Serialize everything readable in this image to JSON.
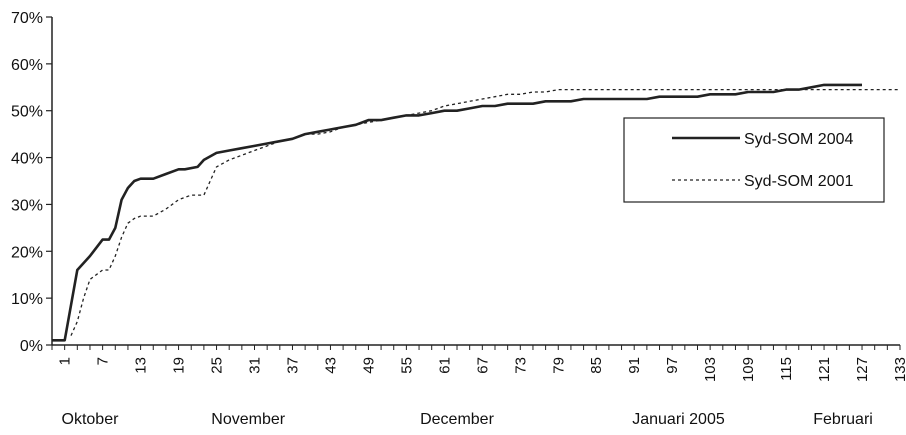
{
  "chart_data": {
    "type": "line",
    "title": "",
    "xlabel": "",
    "ylabel": "",
    "xlim": [
      -1,
      133
    ],
    "ylim": [
      0,
      70
    ],
    "y_ticks": [
      0,
      10,
      20,
      30,
      40,
      50,
      60,
      70
    ],
    "y_tick_labels": [
      "0%",
      "10%",
      "20%",
      "30%",
      "40%",
      "50%",
      "60%",
      "70%"
    ],
    "x_ticks": [
      1,
      7,
      13,
      19,
      25,
      31,
      37,
      43,
      49,
      55,
      61,
      67,
      73,
      79,
      85,
      91,
      97,
      103,
      109,
      115,
      121,
      127,
      133
    ],
    "x_tick_labels": [
      "1",
      "7",
      "13",
      "19",
      "25",
      "31",
      "37",
      "43",
      "49",
      "55",
      "61",
      "67",
      "73",
      "79",
      "85",
      "91",
      "97",
      "103",
      "109",
      "115",
      "121",
      "127",
      "133"
    ],
    "month_labels": [
      {
        "label": "Oktober",
        "x": 5
      },
      {
        "label": "November",
        "x": 30
      },
      {
        "label": "December",
        "x": 63
      },
      {
        "label": "Januari 2005",
        "x": 98
      },
      {
        "label": "Februari",
        "x": 124
      }
    ],
    "grid": false,
    "legend": "right, boxed",
    "series": [
      {
        "name": "Syd-SOM 2004",
        "style": "solid",
        "color": "#222222",
        "x": [
          -1,
          1,
          3,
          5,
          7,
          8,
          9,
          10,
          11,
          12,
          13,
          15,
          17,
          19,
          20,
          22,
          23,
          25,
          27,
          29,
          31,
          33,
          35,
          37,
          39,
          41,
          43,
          45,
          47,
          49,
          51,
          53,
          55,
          57,
          59,
          61,
          63,
          65,
          67,
          69,
          71,
          73,
          75,
          77,
          79,
          81,
          83,
          85,
          87,
          89,
          91,
          93,
          95,
          97,
          99,
          101,
          103,
          105,
          107,
          109,
          111,
          113,
          115,
          117,
          119,
          121,
          123,
          125,
          127
        ],
        "y": [
          1,
          1,
          16,
          19,
          22.5,
          22.5,
          25,
          31,
          33.5,
          35,
          35.5,
          35.5,
          36.5,
          37.5,
          37.5,
          38,
          39.5,
          41,
          41.5,
          42,
          42.5,
          43,
          43.5,
          44,
          45,
          45.5,
          46,
          46.5,
          47,
          48,
          48,
          48.5,
          49,
          49,
          49.5,
          50,
          50,
          50.5,
          51,
          51,
          51.5,
          51.5,
          51.5,
          52,
          52,
          52,
          52.5,
          52.5,
          52.5,
          52.5,
          52.5,
          52.5,
          53,
          53,
          53,
          53,
          53.5,
          53.5,
          53.5,
          54,
          54,
          54,
          54.5,
          54.5,
          55,
          55.5,
          55.5,
          55.5,
          55.5
        ]
      },
      {
        "name": "Syd-SOM 2001",
        "style": "dotted",
        "color": "#222222",
        "x": [
          2,
          3,
          4,
          5,
          7,
          8,
          9,
          10,
          11,
          12,
          13,
          15,
          17,
          19,
          21,
          23,
          25,
          27,
          29,
          31,
          33,
          35,
          37,
          39,
          41,
          43,
          45,
          47,
          49,
          51,
          53,
          55,
          57,
          59,
          61,
          63,
          65,
          67,
          69,
          71,
          73,
          75,
          77,
          79,
          81,
          83,
          85,
          87,
          89,
          91,
          93,
          95,
          97,
          99,
          101,
          103,
          105,
          107,
          109,
          111,
          113,
          115,
          117,
          119,
          121,
          123,
          125,
          127,
          129,
          131,
          133
        ],
        "y": [
          2,
          5,
          10,
          14,
          16,
          16,
          19,
          23,
          26,
          27,
          27.5,
          27.5,
          29,
          31,
          32,
          32,
          38,
          39.5,
          40.5,
          41.5,
          42.5,
          43.5,
          44,
          45,
          45,
          45.5,
          46.5,
          47,
          47.5,
          48,
          48.5,
          49,
          49.5,
          50,
          51,
          51.5,
          52,
          52.5,
          53,
          53.5,
          53.5,
          54,
          54,
          54.5,
          54.5,
          54.5,
          54.5,
          54.5,
          54.5,
          54.5,
          54.5,
          54.5,
          54.5,
          54.5,
          54.5,
          54.5,
          54.5,
          54.5,
          54.5,
          54.5,
          54.5,
          54.5,
          54.5,
          54.5,
          54.5,
          54.5,
          54.5,
          54.5,
          54.5,
          54.5,
          54.5
        ]
      }
    ]
  }
}
